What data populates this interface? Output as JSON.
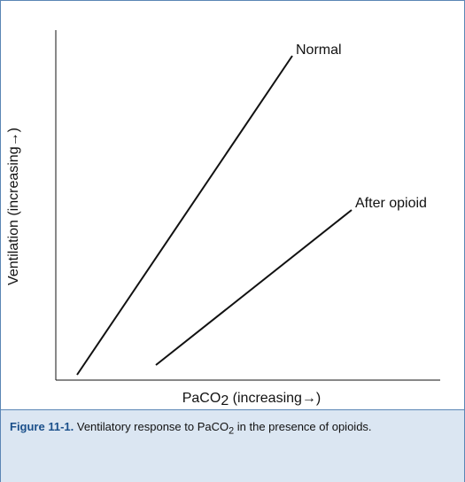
{
  "figure": {
    "y_axis_label": "Ventilation (increasing→)",
    "x_axis_label": {
      "main": "PaCO",
      "subscript": "2",
      "rest": " (increasing→)"
    },
    "lines": [
      {
        "label": "Normal"
      },
      {
        "label": "After opioid"
      }
    ],
    "caption": {
      "number": "Figure 11-1.",
      "text_before": " Ventilatory response to PaCO",
      "subscript": "2",
      "text_after": " in the presence of opioids."
    }
  }
}
